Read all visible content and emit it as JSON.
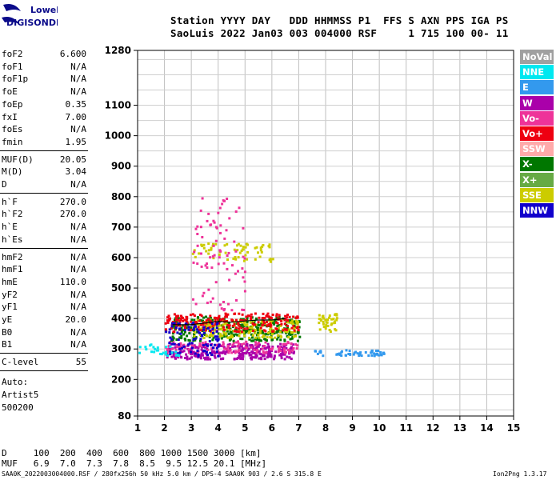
{
  "logo": {
    "line1": "Lowell",
    "line2": "DIGISONDE",
    "brand_color": "#0b0b8a"
  },
  "header": {
    "line1": "Station YYYY DAY   DDD HHMMSS P1  FFS S AXN PPS IGA PS",
    "line2": "SaoLuis 2022 Jan03 003 004000 RSF     1 715 100 00- 11"
  },
  "params": {
    "group1": [
      {
        "name": "foF2",
        "value": "6.600"
      },
      {
        "name": "foF1",
        "value": "N/A"
      },
      {
        "name": "foF1p",
        "value": "N/A"
      },
      {
        "name": "foE",
        "value": "N/A"
      },
      {
        "name": "foEp",
        "value": "0.35"
      },
      {
        "name": "fxI",
        "value": "7.00"
      },
      {
        "name": "foEs",
        "value": "N/A"
      },
      {
        "name": "fmin",
        "value": "1.95"
      }
    ],
    "group2": [
      {
        "name": "MUF(D)",
        "value": "20.05"
      },
      {
        "name": "M(D)",
        "value": "3.04"
      },
      {
        "name": "D",
        "value": "N/A"
      }
    ],
    "group3": [
      {
        "name": "h`F",
        "value": "270.0"
      },
      {
        "name": "h`F2",
        "value": "270.0"
      },
      {
        "name": "h`E",
        "value": "N/A"
      },
      {
        "name": "h`Es",
        "value": "N/A"
      }
    ],
    "group4": [
      {
        "name": "hmF2",
        "value": "N/A"
      },
      {
        "name": "hmF1",
        "value": "N/A"
      },
      {
        "name": "hmE",
        "value": "110.0"
      },
      {
        "name": "yF2",
        "value": "N/A"
      },
      {
        "name": "yF1",
        "value": "N/A"
      },
      {
        "name": "yE",
        "value": "20.0"
      },
      {
        "name": "B0",
        "value": "N/A"
      },
      {
        "name": "B1",
        "value": "N/A"
      }
    ],
    "group5": [
      {
        "name": "C-level",
        "value": "55"
      }
    ],
    "autoscaling": [
      "Auto:",
      "Artist5",
      "500200"
    ]
  },
  "legend": [
    {
      "label": "NoVal",
      "color": "#a0a0a0"
    },
    {
      "label": "NNE",
      "color": "#00e8f0"
    },
    {
      "label": "E",
      "color": "#3399ee"
    },
    {
      "label": "W",
      "color": "#aa00aa"
    },
    {
      "label": "Vo-",
      "color": "#ee3399"
    },
    {
      "label": "Vo+",
      "color": "#ee0011"
    },
    {
      "label": "SSW",
      "color": "#ffaaaa"
    },
    {
      "label": "X-",
      "color": "#007700"
    },
    {
      "label": "X+",
      "color": "#66aa44"
    },
    {
      "label": "SSE",
      "color": "#cccc00"
    },
    {
      "label": "NNW",
      "color": "#1100cc"
    }
  ],
  "muf_table": {
    "line1": "D     100  200  400  600  800 1000 1500 3000 [km]",
    "line2": "MUF   6.9  7.0  7.3  7.8  8.5  9.5 12.5 20.1 [MHz]"
  },
  "footer": {
    "left": "SAA0K_2022003004000.RSF / 280fx256h 50 kHz 5.0 km / DPS-4 SAA0K 903 / 2.6 S 315.8 E",
    "right": "Ion2Png 1.3.17"
  },
  "chart_data": {
    "type": "scatter",
    "xlim": [
      1,
      15
    ],
    "ylim": [
      80,
      1280
    ],
    "x_ticks": [
      1,
      2,
      3,
      4,
      5,
      6,
      7,
      8,
      9,
      10,
      11,
      12,
      13,
      14,
      15
    ],
    "y_ticks": [
      80,
      200,
      300,
      400,
      500,
      600,
      700,
      800,
      900,
      1000,
      1100,
      1280
    ],
    "grid": true,
    "clusters": [
      {
        "mode": "W",
        "x": [
          2.0,
          6.8
        ],
        "y": [
          270,
          320
        ],
        "color": "#aa00aa",
        "density": 0.9
      },
      {
        "mode": "Vo-",
        "x": [
          2.0,
          7.0
        ],
        "y": [
          290,
          330
        ],
        "color": "#ee3399",
        "density": 0.4
      },
      {
        "mode": "X-",
        "x": [
          2.2,
          7.0
        ],
        "y": [
          330,
          410
        ],
        "color": "#007700",
        "density": 0.6
      },
      {
        "mode": "SSE",
        "x": [
          3.0,
          7.0
        ],
        "y": [
          340,
          400
        ],
        "color": "#cccc00",
        "density": 0.5
      },
      {
        "mode": "Vo+",
        "x": [
          2.0,
          7.0
        ],
        "y": [
          360,
          420
        ],
        "color": "#ee0011",
        "density": 0.5
      },
      {
        "mode": "NNW",
        "x": [
          2.0,
          4.0
        ],
        "y": [
          280,
          390
        ],
        "color": "#1100cc",
        "density": 0.3
      },
      {
        "mode": "E",
        "x": [
          7.5,
          10.2
        ],
        "y": [
          280,
          300
        ],
        "color": "#3399ee",
        "density": 0.7
      },
      {
        "mode": "SSE",
        "x": [
          7.7,
          8.4
        ],
        "y": [
          360,
          420
        ],
        "color": "#cccc00",
        "density": 0.7
      },
      {
        "mode": "NNE",
        "x": [
          1.0,
          2.5
        ],
        "y": [
          280,
          320
        ],
        "color": "#00e8f0",
        "density": 0.3
      },
      {
        "mode": "SSE",
        "x": [
          3.0,
          6.0
        ],
        "y": [
          590,
          650
        ],
        "color": "#cccc00",
        "density": 0.25
      },
      {
        "mode": "Vo-",
        "x": [
          3.0,
          5.0
        ],
        "y": [
          430,
          800
        ],
        "color": "#ee3399",
        "density": 0.08
      }
    ],
    "trace": {
      "x": [
        2.3,
        3.0,
        3.5,
        4.0,
        4.5,
        5.0,
        5.5,
        6.0,
        6.5
      ],
      "y": [
        380,
        380,
        385,
        390,
        388,
        392,
        395,
        395,
        400
      ],
      "color": "#000000"
    }
  }
}
